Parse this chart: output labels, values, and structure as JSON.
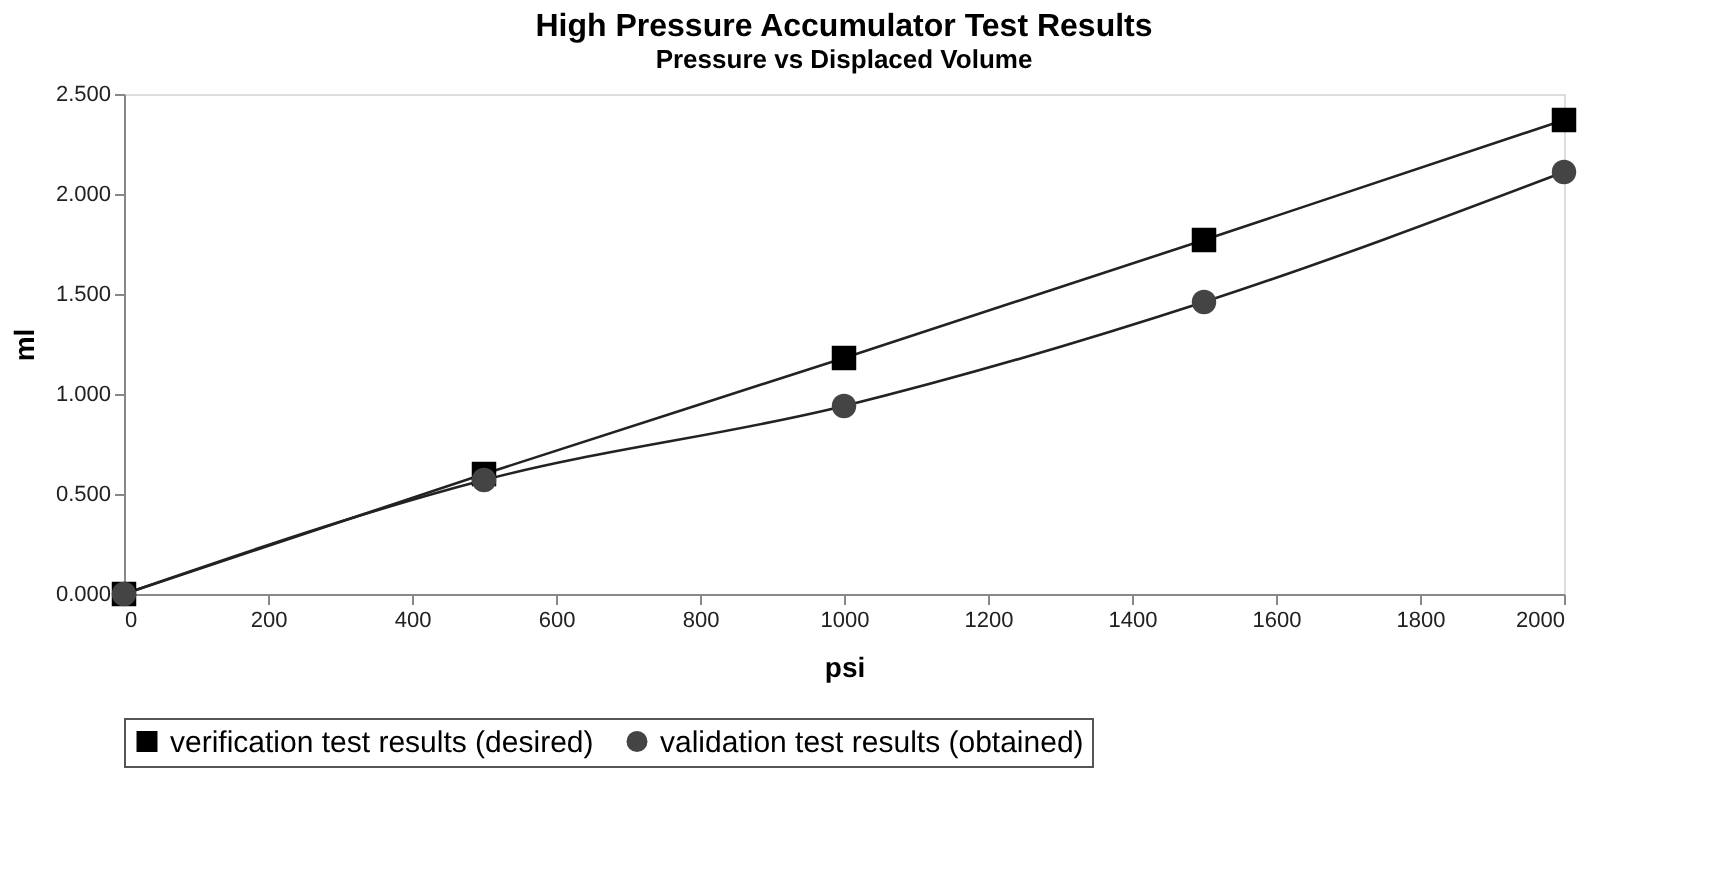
{
  "chart_data": {
    "type": "line",
    "title": "High Pressure Accumulator Test Results",
    "subtitle": "Pressure vs Displaced Volume",
    "xlabel": "psi",
    "ylabel": "ml",
    "x": [
      0,
      500,
      1000,
      1500,
      2000
    ],
    "series": [
      {
        "name": "verification test results (desired)",
        "color": "#000000",
        "marker": "square",
        "values": [
          0,
          0.6,
          1.18,
          1.77,
          2.37
        ]
      },
      {
        "name": "validation test results (obtained)",
        "color": "#444444",
        "marker": "circle",
        "values": [
          0,
          0.57,
          0.94,
          1.46,
          2.11
        ]
      }
    ],
    "xlim": [
      0,
      2000
    ],
    "xticks": [
      0,
      200,
      400,
      600,
      800,
      1000,
      1200,
      1400,
      1600,
      1800,
      2000
    ],
    "ylim": [
      0,
      2.5
    ],
    "yticks": [
      {
        "value": 0,
        "label": "0.000"
      },
      {
        "value": 0.5,
        "label": "0.500"
      },
      {
        "value": 1,
        "label": "1.000"
      },
      {
        "value": 1.5,
        "label": "1.500"
      },
      {
        "value": 2,
        "label": "2.000"
      },
      {
        "value": 2.5,
        "label": "2.500"
      }
    ],
    "grid": false,
    "legend": "bottom",
    "line_style": "solid"
  }
}
